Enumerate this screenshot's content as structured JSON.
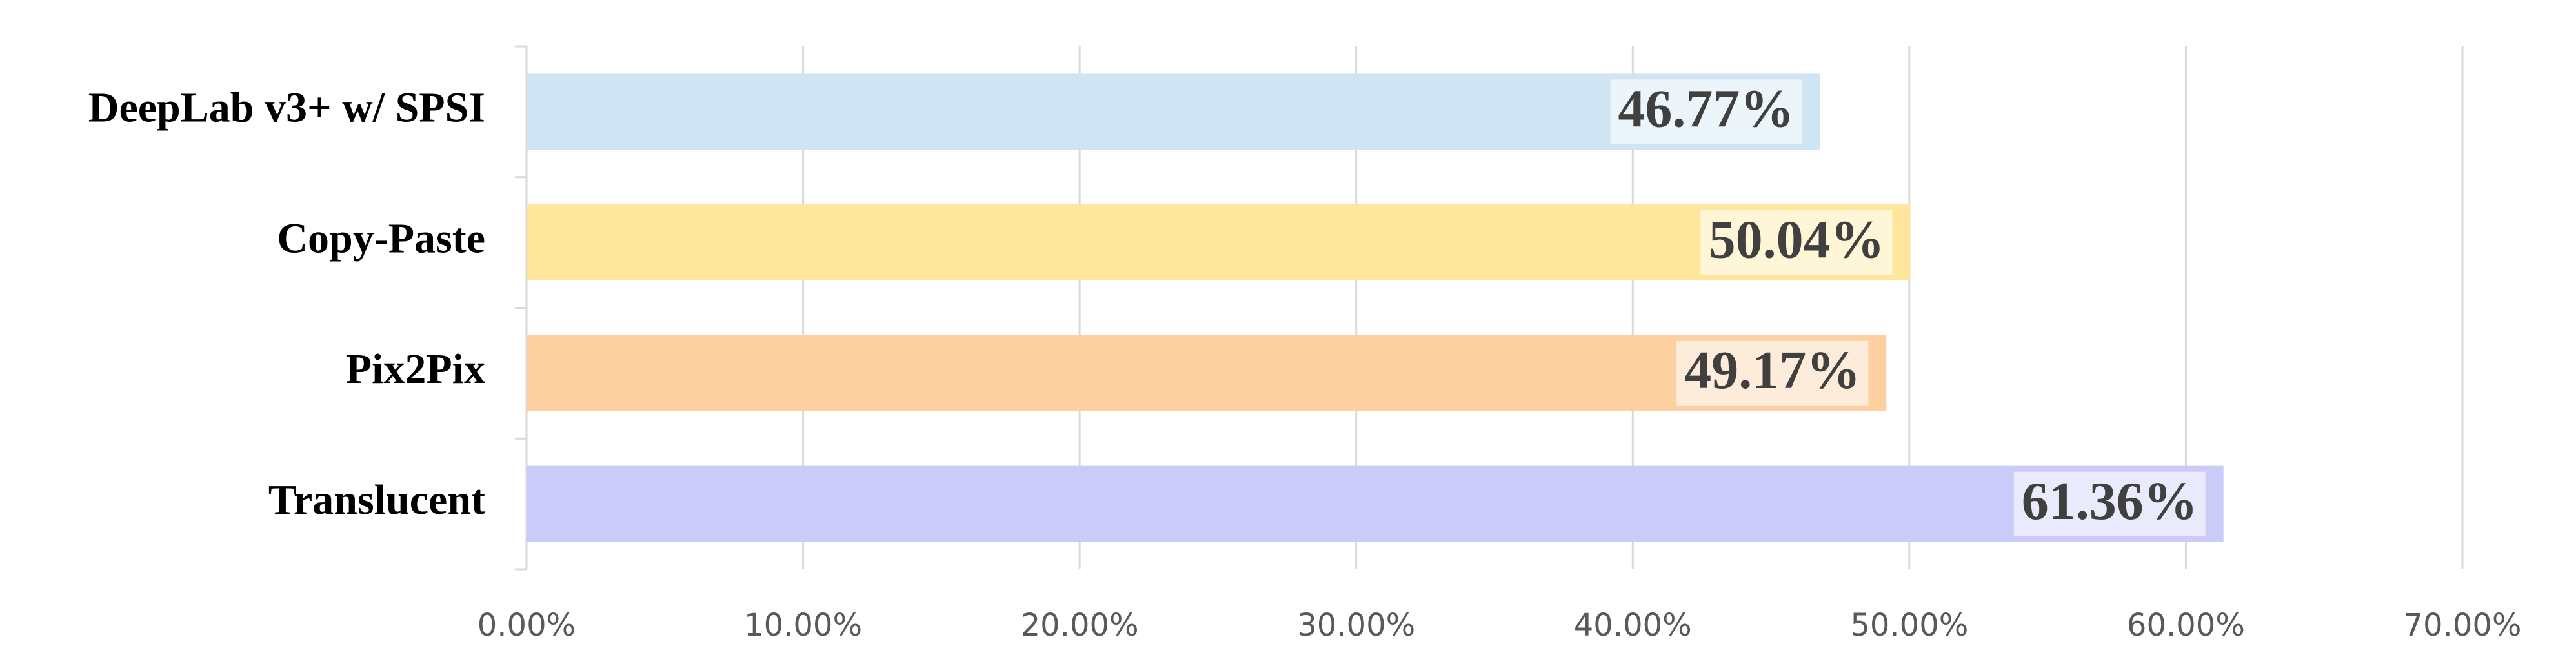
{
  "chart_data": {
    "type": "bar",
    "orientation": "horizontal",
    "categories": [
      "DeepLab v3+ w/ SPSI",
      "Copy-Paste",
      "Pix2Pix",
      "Translucent"
    ],
    "values": [
      46.77,
      50.04,
      49.17,
      61.36
    ],
    "value_labels": [
      "46.77%",
      "50.04%",
      "49.17%",
      "61.36%"
    ],
    "colors": [
      "#cfe5f3",
      "#fee79c",
      "#fdd0a2",
      "#cbcbfa"
    ],
    "xlim": [
      0,
      70
    ],
    "xticks": [
      {
        "value": 0,
        "label": "0.00%"
      },
      {
        "value": 10,
        "label": "10.00%"
      },
      {
        "value": 20,
        "label": "20.00%"
      },
      {
        "value": 30,
        "label": "30.00%"
      },
      {
        "value": 40,
        "label": "40.00%"
      },
      {
        "value": 50,
        "label": "50.00%"
      },
      {
        "value": 60,
        "label": "60.00%"
      },
      {
        "value": 70,
        "label": "70.00%"
      }
    ],
    "grid": true
  }
}
